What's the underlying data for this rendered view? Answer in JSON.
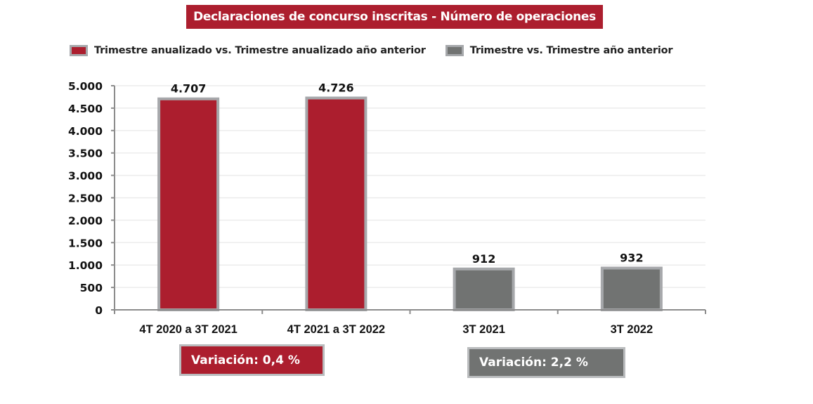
{
  "colors": {
    "annualized": "#ac1e2e",
    "quarterly": "#717372",
    "bar_border": "#a6a8ab",
    "axis": "#8c8c8c",
    "grid": "#ececec"
  },
  "variations": {
    "annualized": "Variación:  0,4 %",
    "quarterly": "Variación: 2,2 %"
  },
  "chart_data": {
    "type": "bar",
    "title": "Declaraciones de concurso inscritas - Número de operaciones",
    "xlabel": "",
    "ylabel": "",
    "ylim": [
      0,
      5000
    ],
    "grid": true,
    "legend_position": "top",
    "yticks": [
      0,
      500,
      1000,
      1500,
      2000,
      2500,
      3000,
      3500,
      4000,
      4500,
      5000
    ],
    "ytick_labels": [
      "0",
      "500",
      "1.000",
      "1.500",
      "2.000",
      "2.500",
      "3.000",
      "3.500",
      "4.000",
      "4.500",
      "5.000"
    ],
    "categories": [
      "4T 2020 a 3T 2021",
      "4T 2021 a 3T 2022",
      "3T 2021",
      "3T 2022"
    ],
    "series": [
      {
        "name": "Trimestre anualizado vs. Trimestre anualizado año anterior",
        "color": "#ac1e2e",
        "values": [
          4707,
          4726,
          null,
          null
        ],
        "labels": [
          "4.707",
          "4.726",
          null,
          null
        ]
      },
      {
        "name": "Trimestre vs. Trimestre año anterior",
        "color": "#717372",
        "values": [
          null,
          null,
          912,
          932
        ],
        "labels": [
          null,
          null,
          "912",
          "932"
        ]
      }
    ]
  }
}
